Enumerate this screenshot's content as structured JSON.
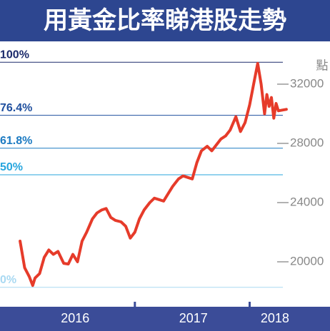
{
  "chart_data": {
    "type": "line",
    "title": "用黃金比率睇港股走勢",
    "y_axis_label": "點",
    "x": [
      2016.0,
      2016.04,
      2016.08,
      2016.11,
      2016.13,
      2016.17,
      2016.21,
      2016.25,
      2016.29,
      2016.33,
      2016.38,
      2016.42,
      2016.46,
      2016.5,
      2016.54,
      2016.58,
      2016.63,
      2016.67,
      2016.71,
      2016.75,
      2016.79,
      2016.83,
      2016.88,
      2016.92,
      2016.96,
      2017.0,
      2017.04,
      2017.08,
      2017.13,
      2017.17,
      2017.21,
      2017.25,
      2017.29,
      2017.33,
      2017.38,
      2017.42,
      2017.46,
      2017.5,
      2017.54,
      2017.58,
      2017.63,
      2017.67,
      2017.71,
      2017.75,
      2017.79,
      2017.83,
      2017.88,
      2017.92,
      2017.96,
      2018.0,
      2018.04,
      2018.07,
      2018.1,
      2018.13,
      2018.15,
      2018.17,
      2018.19,
      2018.21,
      2018.23,
      2018.25,
      2018.32
    ],
    "series": [
      {
        "color": "#e63b2a",
        "values": [
          21400,
          19600,
          19000,
          18400,
          18900,
          19200,
          20300,
          20800,
          20500,
          20700,
          19900,
          19850,
          20500,
          20000,
          21400,
          22000,
          22900,
          23300,
          23500,
          23600,
          23000,
          22800,
          22700,
          22400,
          21600,
          22000,
          22900,
          23500,
          24000,
          24300,
          24200,
          24100,
          24600,
          25100,
          25600,
          25800,
          25700,
          25600,
          26700,
          27500,
          27800,
          27500,
          27900,
          28300,
          28500,
          28900,
          29800,
          28800,
          29400,
          30600,
          32200,
          33400,
          32000,
          30000,
          31300,
          30500,
          31100,
          29700,
          30700,
          30200,
          30300
        ]
      }
    ],
    "xlim": [
      2015.825,
      2018.7
    ],
    "xticks": [
      {
        "value": 2016.48,
        "label": "2016"
      },
      {
        "value": 2017.51,
        "label": "2017"
      },
      {
        "value": 2018.22,
        "label": "2018"
      }
    ],
    "x_boundary_ticks": [
      2017,
      2018
    ],
    "ylim": [
      16964,
      34554
    ],
    "yticks": [
      20000,
      24000,
      28000,
      32000
    ],
    "levels": [
      {
        "label": "100%",
        "value": 33484,
        "color": "#1b2a6b"
      },
      {
        "label": "76.4%",
        "value": 29896,
        "color": "#1f4f9e"
      },
      {
        "label": "61.8%",
        "value": 27675,
        "color": "#1d7bc2"
      },
      {
        "label": "50%",
        "value": 25881,
        "color": "#27a6de"
      },
      {
        "label": "0%",
        "value": 18278,
        "color": "#a9d9f2"
      }
    ]
  }
}
